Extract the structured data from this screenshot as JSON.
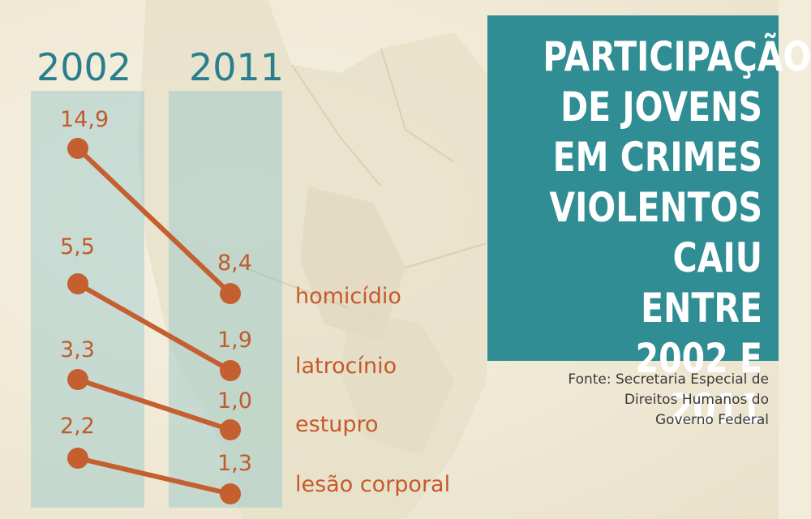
{
  "title": "PARTICIPAÇÃO\nDE JOVENS\nEM CRIMES\nVIOLENTOS\nCAIU ENTRE\n2002 E 2011",
  "source": "Fonte: Secretaria Especial de\nDireitos Humanos do\nGoverno Federal",
  "colors": {
    "line": "#c45f30",
    "band": "#8cc4c8",
    "title_bg": "#2f8d93",
    "year": "#2a7f8c"
  },
  "chart_data": {
    "type": "line",
    "x": [
      "2002",
      "2011"
    ],
    "series": [
      {
        "name": "homicídio",
        "values": [
          14.9,
          8.4
        ],
        "labels": [
          "14,9",
          "8,4"
        ]
      },
      {
        "name": "latrocínio",
        "values": [
          5.5,
          1.9
        ],
        "labels": [
          "5,5",
          "1,9"
        ]
      },
      {
        "name": "estupro",
        "values": [
          3.3,
          1.0
        ],
        "labels": [
          "3,3",
          "1,0"
        ]
      },
      {
        "name": "lesão corporal",
        "values": [
          2.2,
          1.3
        ],
        "labels": [
          "2,2",
          "1,3"
        ]
      }
    ]
  }
}
